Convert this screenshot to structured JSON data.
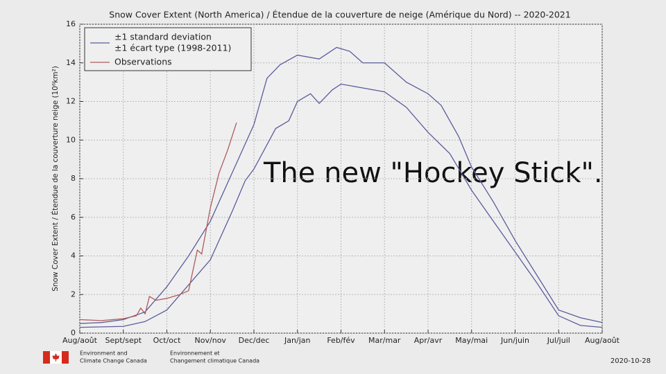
{
  "chart_data": {
    "type": "line",
    "title": "Snow Cover Extent (North America) / Étendue de la couverture de neige (Amérique du Nord) -- 2020-2021",
    "y_label": "Snow Cover Extent / Étendue de la couverture neige (10⁶km²)",
    "annotation": "The new \"Hockey Stick\".",
    "xlim": [
      0,
      12
    ],
    "xticks": [
      {
        "value": 0,
        "label": "Aug/août"
      },
      {
        "value": 1,
        "label": "Sept/sept"
      },
      {
        "value": 2,
        "label": "Oct/oct"
      },
      {
        "value": 3,
        "label": "Nov/nov"
      },
      {
        "value": 4,
        "label": "Dec/dec"
      },
      {
        "value": 5,
        "label": "Jan/jan"
      },
      {
        "value": 6,
        "label": "Feb/fév"
      },
      {
        "value": 7,
        "label": "Mar/mar"
      },
      {
        "value": 8,
        "label": "Apr/avr"
      },
      {
        "value": 9,
        "label": "May/mai"
      },
      {
        "value": 10,
        "label": "Jun/juin"
      },
      {
        "value": 11,
        "label": "Jul/juil"
      },
      {
        "value": 12,
        "label": "Aug/août"
      }
    ],
    "ylim": [
      0,
      16
    ],
    "yticks": [
      0,
      2,
      4,
      6,
      8,
      10,
      12,
      14,
      16
    ],
    "grid": true,
    "series": [
      {
        "name": [
          "±1 standard deviation",
          "±1 écart type (1998-2011)"
        ],
        "color": "#5b5b9c",
        "x": [
          0,
          0.5,
          1,
          1.5,
          2,
          2.5,
          3,
          3.5,
          4,
          4.3,
          4.6,
          5,
          5.5,
          5.9,
          6.2,
          6.5,
          7,
          7.5,
          8,
          8.3,
          8.7,
          9,
          9.5,
          10,
          10.5,
          11,
          11.5,
          12
        ],
        "values": [
          0.5,
          0.55,
          0.7,
          1.1,
          2.4,
          4.0,
          5.8,
          8.3,
          10.8,
          13.2,
          13.9,
          14.4,
          14.2,
          14.8,
          14.6,
          14.0,
          14.0,
          13.0,
          12.4,
          11.8,
          10.2,
          8.6,
          6.8,
          4.8,
          3.0,
          1.2,
          0.8,
          0.55
        ]
      },
      {
        "color": "#5b5b9c",
        "x": [
          0,
          1,
          1.5,
          2,
          2.5,
          3,
          3.5,
          3.8,
          4,
          4.5,
          4.8,
          5,
          5.3,
          5.5,
          5.8,
          6,
          6.5,
          7,
          7.5,
          8,
          8.5,
          9,
          9.5,
          10,
          10.5,
          11,
          11.5,
          12
        ],
        "values": [
          0.3,
          0.35,
          0.6,
          1.2,
          2.5,
          3.8,
          6.3,
          7.9,
          8.5,
          10.6,
          11.0,
          12.0,
          12.4,
          11.9,
          12.6,
          12.9,
          12.7,
          12.5,
          11.7,
          10.4,
          9.3,
          7.4,
          5.8,
          4.2,
          2.6,
          0.9,
          0.4,
          0.3
        ]
      },
      {
        "name": [
          "Observations"
        ],
        "color": "#b05a5a",
        "x": [
          0,
          0.5,
          1,
          1.3,
          1.4,
          1.5,
          1.6,
          1.75,
          2,
          2.3,
          2.5,
          2.7,
          2.8,
          3,
          3.2,
          3.4,
          3.6
        ],
        "values": [
          0.7,
          0.65,
          0.75,
          0.9,
          1.3,
          1.0,
          1.9,
          1.7,
          1.8,
          2.0,
          2.2,
          4.3,
          4.1,
          6.5,
          8.3,
          9.5,
          10.9
        ]
      }
    ],
    "footer": {
      "english": [
        "Environment and",
        "Climate Change Canada"
      ],
      "french": [
        "Environnement et",
        "Changement climatique Canada"
      ],
      "date": "2020-10-28"
    }
  }
}
